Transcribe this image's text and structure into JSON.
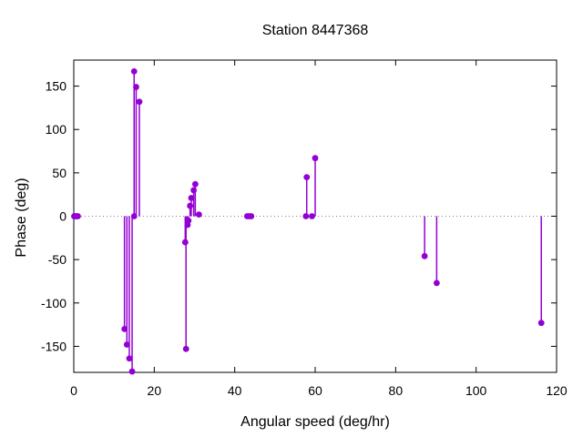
{
  "title": "Station 8447368",
  "colors": {
    "background": "#ffffff",
    "text": "#000000",
    "plot_border": "#000000",
    "series": "#9400d3",
    "zero_line": "#7f7f7f"
  },
  "chart_data": {
    "type": "scatter",
    "style": "impulses+points",
    "title": "Station 8447368",
    "xlabel": "Angular speed (deg/hr)",
    "ylabel": "Phase (deg)",
    "xlim": [
      0,
      120
    ],
    "ylim": [
      -180,
      180
    ],
    "xticks": [
      0,
      20,
      40,
      60,
      80,
      100,
      120
    ],
    "yticks": [
      -150,
      -100,
      -50,
      0,
      50,
      100,
      150
    ],
    "grid": false,
    "zero_line": true,
    "legend": "none",
    "series": [
      {
        "name": "phase",
        "color": "#9400d3",
        "points": [
          [
            0.1,
            0
          ],
          [
            0.4,
            0
          ],
          [
            0.7,
            0
          ],
          [
            1.0,
            0
          ],
          [
            12.6,
            -130
          ],
          [
            13.2,
            -148
          ],
          [
            13.8,
            -164
          ],
          [
            14.5,
            -179
          ],
          [
            15.0,
            0
          ],
          [
            15.0,
            167
          ],
          [
            15.5,
            149
          ],
          [
            16.3,
            132
          ],
          [
            27.7,
            -30
          ],
          [
            27.9,
            -153
          ],
          [
            28.3,
            -10
          ],
          [
            28.5,
            -5
          ],
          [
            28.9,
            12
          ],
          [
            29.2,
            21
          ],
          [
            29.8,
            30
          ],
          [
            30.2,
            37
          ],
          [
            31.1,
            2
          ],
          [
            43.1,
            0
          ],
          [
            43.6,
            0
          ],
          [
            44.1,
            0
          ],
          [
            57.7,
            0
          ],
          [
            57.9,
            45
          ],
          [
            59.2,
            0
          ],
          [
            60.0,
            67
          ],
          [
            87.2,
            -46
          ],
          [
            90.2,
            -77
          ],
          [
            116.2,
            -123
          ]
        ]
      }
    ]
  }
}
